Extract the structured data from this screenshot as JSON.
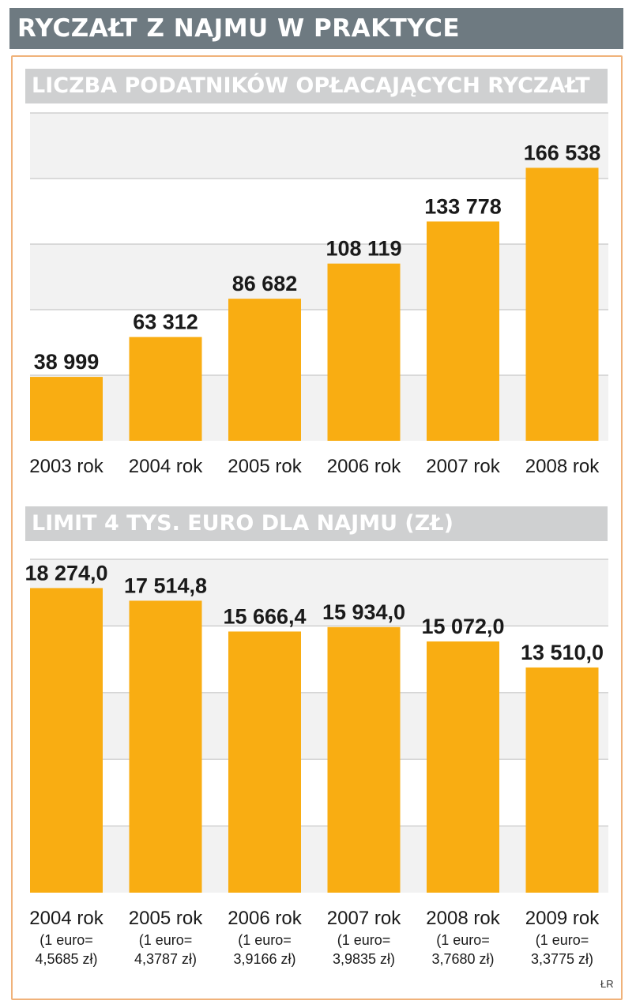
{
  "title": "RYCZAŁT Z NAJMU W PRAKTYCE",
  "credit": "ŁR",
  "colors": {
    "bar": "#f9ad12",
    "band": "#f2f2f2",
    "grid": "#c8c8c8",
    "header_dark": "#6e7a81",
    "header_light": "#cfd0d1",
    "frame": "#f0b27a"
  },
  "chart_data": [
    {
      "type": "bar",
      "title": "LICZBA PODATNIKÓW OPŁACAJĄCYCH RYCZAŁT",
      "categories": [
        "2003 rok",
        "2004 rok",
        "2005 rok",
        "2006 rok",
        "2007 rok",
        "2008 rok"
      ],
      "values": [
        38999,
        63312,
        86682,
        108119,
        133778,
        166538
      ],
      "value_labels": [
        "38 999",
        "63 312",
        "86 682",
        "108 119",
        "133 778",
        "166 538"
      ],
      "ylim": [
        0,
        200000
      ],
      "grid_step": 40000,
      "xlabel": "",
      "ylabel": ""
    },
    {
      "type": "bar",
      "title": "LIMIT 4 TYS. EURO DLA NAJMU (ZŁ)",
      "categories": [
        "2004 rok",
        "2005 rok",
        "2006 rok",
        "2007 rok",
        "2008 rok",
        "2009 rok"
      ],
      "notes": [
        [
          "(1 euro=",
          "4,5685 zł)"
        ],
        [
          "(1 euro=",
          "4,3787 zł)"
        ],
        [
          "(1 euro=",
          "3,9166 zł)"
        ],
        [
          "(1 euro=",
          "3,9835 zł)"
        ],
        [
          "(1 euro=",
          "3,7680 zł)"
        ],
        [
          "(1 euro=",
          "3,3775 zł)"
        ]
      ],
      "values": [
        18274.0,
        17514.8,
        15666.4,
        15934.0,
        15072.0,
        13510.0
      ],
      "value_labels": [
        "18 274,0",
        "17 514,8",
        "15 666,4",
        "15 934,0",
        "15 072,0",
        "13 510,0"
      ],
      "ylim": [
        0,
        20000
      ],
      "grid_step": 4000,
      "xlabel": "",
      "ylabel": ""
    }
  ]
}
